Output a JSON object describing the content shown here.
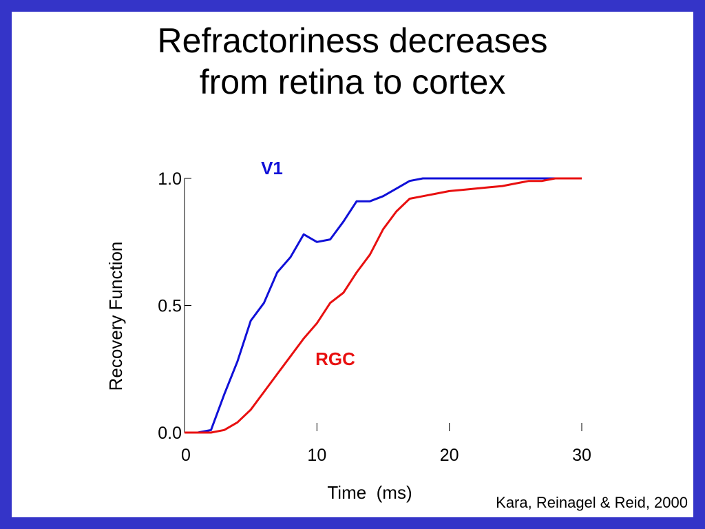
{
  "slide": {
    "title_line1": "Refractoriness decreases",
    "title_line2": "from retina to cortex",
    "citation": "Kara, Reinagel & Reid, 2000"
  },
  "colors": {
    "border": "#3434c8",
    "background": "#ffffff",
    "v1": "#1010d8",
    "rgc": "#e81010"
  },
  "chart_data": {
    "type": "line",
    "xlabel": "Time  (ms)",
    "ylabel": "Recovery Function",
    "xlim": [
      0,
      30
    ],
    "ylim": [
      0,
      1
    ],
    "xticks": [
      0,
      10,
      20,
      30
    ],
    "xtick_labels": [
      "0",
      "10",
      "20",
      "30"
    ],
    "yticks": [
      0,
      0.5,
      1
    ],
    "ytick_labels": [
      "0.0",
      "0.5",
      "1.0"
    ],
    "grid": false,
    "series": [
      {
        "name": "V1",
        "color": "#1010d8",
        "x": [
          0,
          1,
          2,
          3,
          4,
          5,
          6,
          7,
          8,
          9,
          10,
          11,
          12,
          13,
          14,
          15,
          16,
          17,
          18,
          20,
          22,
          24,
          26,
          28,
          30
        ],
        "y": [
          0,
          0,
          0.01,
          0.15,
          0.28,
          0.44,
          0.51,
          0.63,
          0.69,
          0.78,
          0.75,
          0.76,
          0.83,
          0.91,
          0.91,
          0.93,
          0.96,
          0.99,
          1.0,
          1.0,
          1.0,
          1.0,
          1.0,
          1.0,
          1.0
        ]
      },
      {
        "name": "RGC",
        "color": "#e81010",
        "x": [
          0,
          1,
          2,
          3,
          4,
          5,
          6,
          7,
          8,
          9,
          10,
          11,
          12,
          13,
          14,
          15,
          16,
          17,
          18,
          19,
          20,
          21,
          22,
          23,
          24,
          25,
          26,
          27,
          28,
          29,
          30
        ],
        "y": [
          0,
          0,
          0,
          0.01,
          0.04,
          0.09,
          0.16,
          0.23,
          0.3,
          0.37,
          0.43,
          0.51,
          0.55,
          0.63,
          0.7,
          0.8,
          0.87,
          0.92,
          0.93,
          0.94,
          0.95,
          0.955,
          0.96,
          0.965,
          0.97,
          0.98,
          0.99,
          0.99,
          1.0,
          1.0,
          1.0
        ]
      }
    ]
  }
}
